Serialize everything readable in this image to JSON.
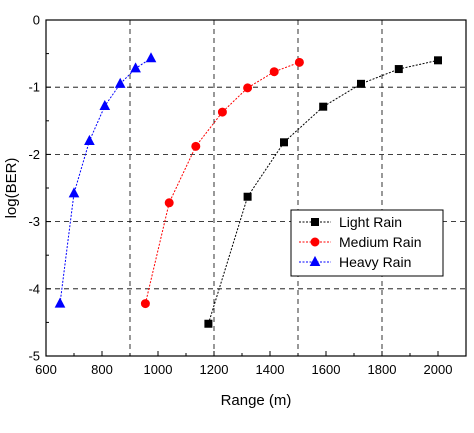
{
  "chart_data": {
    "type": "line",
    "title": "",
    "xlabel": "Range (m)",
    "ylabel": "log(BER)",
    "xlim": [
      600,
      2100
    ],
    "ylim": [
      -5,
      0
    ],
    "xticks": [
      600,
      800,
      1000,
      1200,
      1400,
      1600,
      1800,
      2000
    ],
    "yticks": [
      0,
      -1,
      -2,
      -3,
      -4,
      -5
    ],
    "x_tick_labels": [
      "600",
      "800",
      "1000",
      "1200",
      "1400",
      "1600",
      "1800",
      "2000"
    ],
    "y_tick_labels": [
      "0",
      "-1",
      "-2",
      "-3",
      "-4",
      "-5"
    ],
    "grid": "dashed, at x = 900, 1200, 1500, 1800 and y = -1, -2, -3, -4",
    "legend_position": "center-right",
    "series": [
      {
        "name": "Light Rain",
        "color": "#000000",
        "marker": "square",
        "x": [
          1180,
          1320,
          1450,
          1590,
          1725,
          1860,
          2000
        ],
        "y": [
          -4.52,
          -2.63,
          -1.82,
          -1.29,
          -0.95,
          -0.73,
          -0.6
        ]
      },
      {
        "name": "Medium Rain",
        "color": "#ff0000",
        "marker": "circle",
        "x": [
          955,
          1040,
          1135,
          1230,
          1320,
          1415,
          1505
        ],
        "y": [
          -4.22,
          -2.72,
          -1.88,
          -1.37,
          -1.01,
          -0.77,
          -0.63
        ]
      },
      {
        "name": "Heavy Rain",
        "color": "#0000ff",
        "marker": "triangle",
        "x": [
          650,
          700,
          755,
          810,
          865,
          920,
          975
        ],
        "y": [
          -4.22,
          -2.58,
          -1.8,
          -1.28,
          -0.95,
          -0.72,
          -0.57
        ]
      }
    ]
  }
}
